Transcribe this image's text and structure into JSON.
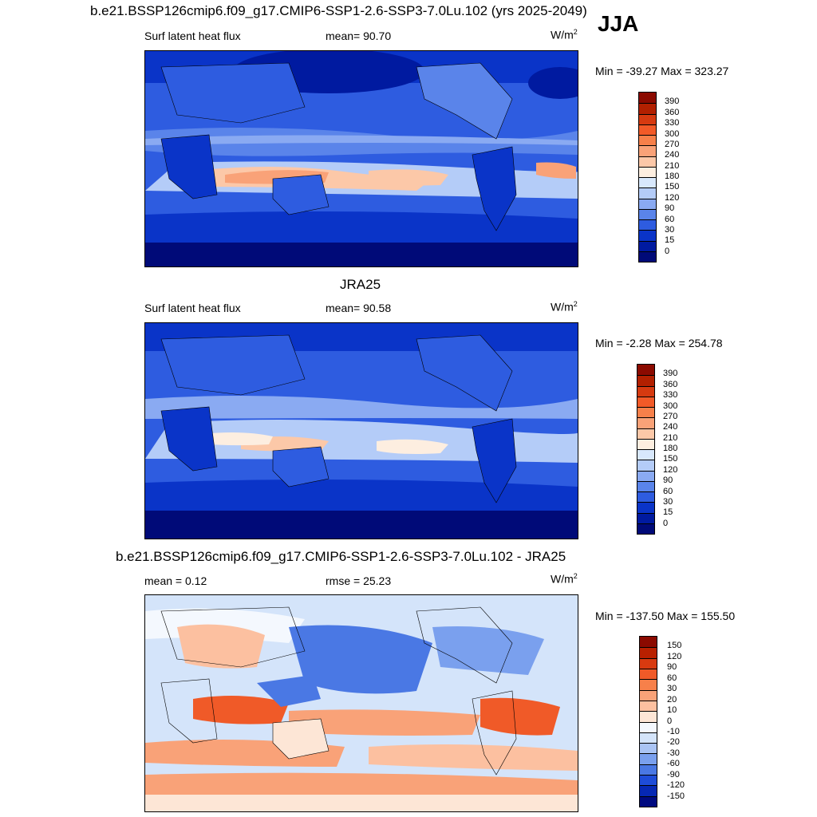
{
  "season": "JJA",
  "panels": [
    {
      "title": "b.e21.BSSP126cmip6.f09_g17.CMIP6-SSP1-2.6-SSP3-7.0Lu.102 (yrs 2025-2049)",
      "left_label": "Surf latent heat flux",
      "center_label": "mean=  90.70",
      "units": "W/m",
      "units_sup": "2",
      "minmax": "Min = -39.27 Max = 323.27",
      "colorbar": {
        "labels": [
          "390",
          "360",
          "330",
          "300",
          "270",
          "240",
          "210",
          "180",
          "150",
          "120",
          "90",
          "60",
          "30",
          "15",
          "0"
        ],
        "colors": [
          "#8b0a00",
          "#b22000",
          "#d63a10",
          "#f25a28",
          "#f7804a",
          "#f9a278",
          "#fcc8a8",
          "#fdeee0",
          "#d8e8fc",
          "#b4ccf8",
          "#8aaaf2",
          "#5a84ea",
          "#2e5ce0",
          "#0a34c8",
          "#001aa0",
          "#000a78"
        ]
      }
    },
    {
      "title": "JRA25",
      "left_label": "Surf latent heat flux",
      "center_label": "mean=  90.58",
      "units": "W/m",
      "units_sup": "2",
      "minmax": "Min =  -2.28 Max = 254.78",
      "colorbar": {
        "labels": [
          "390",
          "360",
          "330",
          "300",
          "270",
          "240",
          "210",
          "180",
          "150",
          "120",
          "90",
          "60",
          "30",
          "15",
          "0"
        ],
        "colors": [
          "#8b0a00",
          "#b22000",
          "#d63a10",
          "#f25a28",
          "#f7804a",
          "#f9a278",
          "#fcc8a8",
          "#fdeee0",
          "#d8e8fc",
          "#b4ccf8",
          "#8aaaf2",
          "#5a84ea",
          "#2e5ce0",
          "#0a34c8",
          "#001aa0",
          "#000a78"
        ]
      }
    },
    {
      "title": "b.e21.BSSP126cmip6.f09_g17.CMIP6-SSP1-2.6-SSP3-7.0Lu.102 - JRA25",
      "left_label": "mean =   0.12",
      "center_label": "rmse =  25.23",
      "units": "W/m",
      "units_sup": "2",
      "minmax": "Min = -137.50 Max = 155.50",
      "colorbar": {
        "labels": [
          "150",
          "120",
          "90",
          "60",
          "30",
          "20",
          "10",
          "0",
          "-10",
          "-20",
          "-30",
          "-60",
          "-90",
          "-120",
          "-150"
        ],
        "colors": [
          "#8b0a00",
          "#b82000",
          "#d83a10",
          "#f05a28",
          "#f7804a",
          "#f9a278",
          "#fcc0a0",
          "#fde6d6",
          "#f4f8fe",
          "#d4e4fa",
          "#aac4f4",
          "#7aa0ee",
          "#4a78e4",
          "#1e4cd8",
          "#0628b4",
          "#000a80"
        ]
      }
    }
  ]
}
